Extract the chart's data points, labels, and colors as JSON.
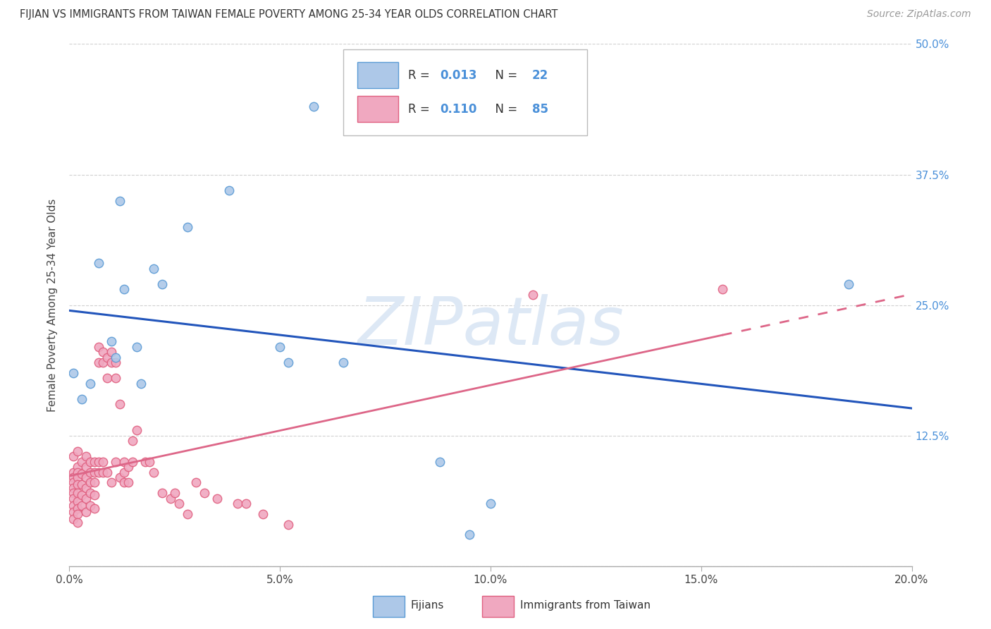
{
  "title": "FIJIAN VS IMMIGRANTS FROM TAIWAN FEMALE POVERTY AMONG 25-34 YEAR OLDS CORRELATION CHART",
  "source": "Source: ZipAtlas.com",
  "ylabel": "Female Poverty Among 25-34 Year Olds",
  "xlim": [
    0.0,
    0.2
  ],
  "ylim": [
    0.0,
    0.5
  ],
  "xticks": [
    0.0,
    0.05,
    0.1,
    0.15,
    0.2
  ],
  "yticks": [
    0.0,
    0.125,
    0.25,
    0.375,
    0.5
  ],
  "xtick_labels": [
    "0.0%",
    "5.0%",
    "10.0%",
    "15.0%",
    "20.0%"
  ],
  "ytick_labels_right": [
    "",
    "12.5%",
    "25.0%",
    "37.5%",
    "50.0%"
  ],
  "fijian_x": [
    0.001,
    0.003,
    0.005,
    0.007,
    0.01,
    0.011,
    0.012,
    0.013,
    0.016,
    0.017,
    0.02,
    0.022,
    0.028,
    0.038,
    0.05,
    0.052,
    0.058,
    0.065,
    0.088,
    0.095,
    0.1,
    0.185
  ],
  "fijian_y": [
    0.185,
    0.16,
    0.175,
    0.29,
    0.215,
    0.2,
    0.35,
    0.265,
    0.21,
    0.175,
    0.285,
    0.27,
    0.325,
    0.36,
    0.21,
    0.195,
    0.44,
    0.195,
    0.1,
    0.03,
    0.06,
    0.27
  ],
  "taiwan_x": [
    0.001,
    0.001,
    0.001,
    0.001,
    0.001,
    0.001,
    0.001,
    0.001,
    0.001,
    0.001,
    0.002,
    0.002,
    0.002,
    0.002,
    0.002,
    0.002,
    0.002,
    0.002,
    0.002,
    0.002,
    0.003,
    0.003,
    0.003,
    0.003,
    0.003,
    0.004,
    0.004,
    0.004,
    0.004,
    0.004,
    0.004,
    0.005,
    0.005,
    0.005,
    0.005,
    0.005,
    0.006,
    0.006,
    0.006,
    0.006,
    0.006,
    0.007,
    0.007,
    0.007,
    0.007,
    0.008,
    0.008,
    0.008,
    0.008,
    0.009,
    0.009,
    0.009,
    0.01,
    0.01,
    0.01,
    0.011,
    0.011,
    0.011,
    0.012,
    0.012,
    0.013,
    0.013,
    0.013,
    0.014,
    0.014,
    0.015,
    0.015,
    0.016,
    0.018,
    0.019,
    0.02,
    0.022,
    0.024,
    0.025,
    0.026,
    0.028,
    0.03,
    0.032,
    0.035,
    0.04,
    0.042,
    0.046,
    0.052,
    0.11,
    0.155
  ],
  "taiwan_y": [
    0.105,
    0.09,
    0.085,
    0.08,
    0.075,
    0.07,
    0.065,
    0.058,
    0.052,
    0.045,
    0.11,
    0.095,
    0.09,
    0.085,
    0.078,
    0.07,
    0.062,
    0.055,
    0.05,
    0.042,
    0.1,
    0.088,
    0.078,
    0.068,
    0.058,
    0.105,
    0.095,
    0.085,
    0.075,
    0.065,
    0.052,
    0.1,
    0.09,
    0.08,
    0.07,
    0.058,
    0.1,
    0.09,
    0.08,
    0.068,
    0.055,
    0.21,
    0.195,
    0.1,
    0.09,
    0.205,
    0.195,
    0.1,
    0.09,
    0.2,
    0.18,
    0.09,
    0.205,
    0.195,
    0.08,
    0.195,
    0.18,
    0.1,
    0.155,
    0.085,
    0.1,
    0.09,
    0.08,
    0.095,
    0.08,
    0.12,
    0.1,
    0.13,
    0.1,
    0.1,
    0.09,
    0.07,
    0.065,
    0.07,
    0.06,
    0.05,
    0.08,
    0.07,
    0.065,
    0.06,
    0.06,
    0.05,
    0.04,
    0.26,
    0.265
  ],
  "fijian_color": "#adc8e8",
  "taiwan_color": "#f0a8c0",
  "fijian_edge_color": "#5b9bd5",
  "taiwan_edge_color": "#e06080",
  "fijian_line_color": "#2255bb",
  "taiwan_line_color": "#dd6688",
  "R_fijian": 0.013,
  "N_fijian": 22,
  "R_taiwan": 0.11,
  "N_taiwan": 85,
  "marker_size": 80,
  "background_color": "#ffffff",
  "grid_color": "#cccccc",
  "watermark": "ZIPatlas"
}
